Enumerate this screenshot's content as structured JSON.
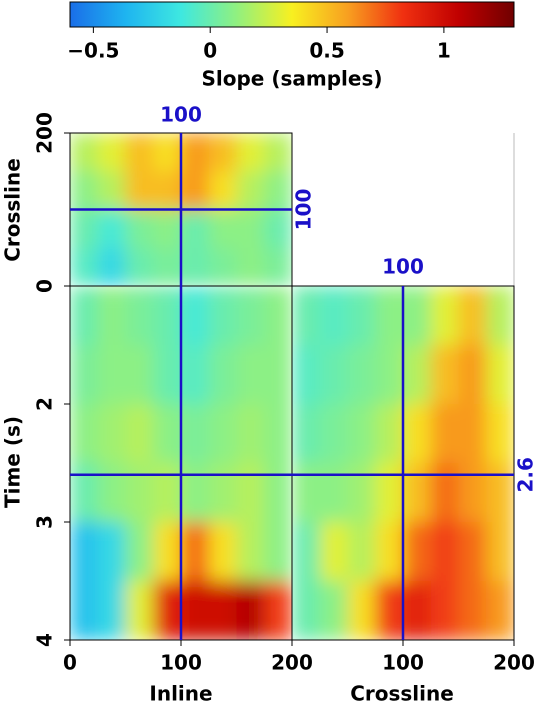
{
  "chart_data": {
    "type": "cube",
    "colorbar": {
      "label": "Slope (samples)",
      "clim": [
        -0.6,
        1.3
      ],
      "ticks": [
        {
          "value": -0.5,
          "label": "−0.5"
        },
        0,
        0.5,
        1
      ],
      "colormap": [
        "#1a6ee8",
        "#1eb4f0",
        "#3ee8e0",
        "#90f080",
        "#f8f020",
        "#f8a020",
        "#f03010",
        "#c00000",
        "#700000"
      ]
    },
    "inline": {
      "label": "Inline",
      "lim": [
        0,
        200
      ],
      "ticks": [
        0,
        100,
        200
      ],
      "slice": 100
    },
    "crossline": {
      "label": "Crossline",
      "lim": [
        0,
        200
      ],
      "ticks": [
        0,
        100,
        200
      ],
      "slice": 100
    },
    "time": {
      "label": "Time (s)",
      "lim": [
        1,
        4
      ],
      "ticks": [
        2,
        3,
        4
      ],
      "slice": 2.6
    },
    "slice_color": "#1a10c8",
    "panels": {
      "front": [
        [
          0,
          0.1,
          0.05,
          0,
          -0.1,
          0,
          0.05,
          0.1
        ],
        [
          0.05,
          0.1,
          0.1,
          0,
          -0.05,
          0.05,
          0.1,
          0.1
        ],
        [
          0.1,
          0.15,
          0.2,
          0.1,
          0.05,
          0.1,
          0.15,
          0.1
        ],
        [
          0,
          0.1,
          0.15,
          0.2,
          0.1,
          0.15,
          0.2,
          0.1
        ],
        [
          -0.3,
          -0.2,
          0.1,
          0.4,
          0.7,
          0.4,
          0.2,
          0.1
        ],
        [
          -0.3,
          -0.2,
          0.3,
          0.9,
          1.0,
          1.0,
          1.1,
          0.8
        ]
      ],
      "top": [
        [
          0.2,
          0.3,
          0.5,
          0.4,
          0.6,
          0.5,
          0.3,
          0.2
        ],
        [
          0.1,
          0.2,
          0.5,
          0.5,
          0.6,
          0.4,
          0.2,
          0.1
        ],
        [
          0,
          -0.1,
          0.05,
          0.1,
          0,
          0.1,
          0.1,
          0
        ],
        [
          -0.05,
          -0.2,
          0,
          0.05,
          0,
          0.05,
          0.1,
          0.05
        ]
      ],
      "side": [
        [
          0,
          -0.05,
          0,
          0.1,
          0.1,
          0.3,
          0.5,
          0.2
        ],
        [
          -0.05,
          0,
          0.05,
          0.1,
          0.2,
          0.5,
          0.6,
          0.3
        ],
        [
          0,
          0.05,
          0.1,
          0.2,
          0.4,
          0.6,
          0.6,
          0.4
        ],
        [
          0.1,
          0.1,
          0.15,
          0.3,
          0.5,
          0.7,
          0.6,
          0.5
        ],
        [
          0,
          0.3,
          0.2,
          0.4,
          0.7,
          0.8,
          0.7,
          0.5
        ],
        [
          0,
          0.1,
          0.4,
          0.8,
          0.9,
          0.8,
          0.7,
          0.6
        ]
      ]
    }
  }
}
